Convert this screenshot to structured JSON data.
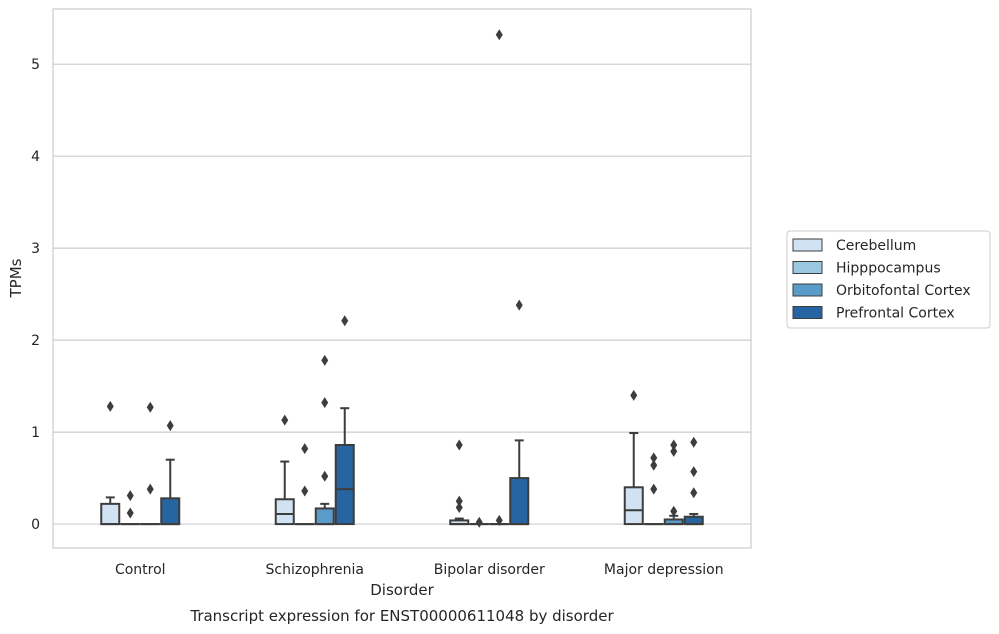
{
  "chart_data": {
    "type": "box",
    "title": "",
    "caption": "Transcript expression for ENST00000611048 by disorder",
    "xlabel": "Disorder",
    "ylabel": "TPMs",
    "ylim": [
      -0.26,
      5.6
    ],
    "yticks": [
      0,
      1,
      2,
      3,
      4,
      5
    ],
    "grid": "horizontal",
    "legend_position": "right",
    "categories": [
      "Control",
      "Schizophrenia",
      "Bipolar disorder",
      "Major depression"
    ],
    "series": [
      {
        "name": "Cerebellum",
        "color": "#d1e2f2",
        "boxes": [
          {
            "q1": 0,
            "median": 0,
            "q3": 0.22,
            "whislo": 0,
            "whishi": 0.29,
            "fliers": [
              1.28
            ]
          },
          {
            "q1": 0,
            "median": 0.11,
            "q3": 0.27,
            "whislo": 0,
            "whishi": 0.68,
            "fliers": [
              1.13
            ]
          },
          {
            "q1": 0,
            "median": 0,
            "q3": 0.04,
            "whislo": 0,
            "whishi": 0.06,
            "fliers": [
              0.18,
              0.25,
              0.86
            ]
          },
          {
            "q1": 0,
            "median": 0.15,
            "q3": 0.4,
            "whislo": 0,
            "whishi": 0.99,
            "fliers": [
              1.4
            ]
          }
        ]
      },
      {
        "name": "Hipppocampus",
        "color": "#9ac8e0",
        "boxes": [
          {
            "q1": 0,
            "median": 0,
            "q3": 0,
            "whislo": 0,
            "whishi": 0,
            "fliers": [
              0.12,
              0.31
            ]
          },
          {
            "q1": 0,
            "median": 0,
            "q3": 0,
            "whislo": 0,
            "whishi": 0,
            "fliers": [
              0.36,
              0.82
            ]
          },
          {
            "q1": 0,
            "median": 0,
            "q3": 0,
            "whislo": 0,
            "whishi": 0,
            "fliers": [
              0.02
            ]
          },
          {
            "q1": 0,
            "median": 0,
            "q3": 0,
            "whislo": 0,
            "whishi": 0,
            "fliers": [
              0.38,
              0.64,
              0.72
            ]
          }
        ]
      },
      {
        "name": "Orbitofontal Cortex",
        "color": "#5b9bc9",
        "boxes": [
          {
            "q1": 0,
            "median": 0,
            "q3": 0,
            "whislo": 0,
            "whishi": 0,
            "fliers": [
              0.38,
              1.27
            ]
          },
          {
            "q1": 0,
            "median": 0,
            "q3": 0.17,
            "whislo": 0,
            "whishi": 0.22,
            "fliers": [
              0.52,
              1.32,
              1.78
            ]
          },
          {
            "q1": 0,
            "median": 0,
            "q3": 0,
            "whislo": 0,
            "whishi": 0,
            "fliers": [
              0.04,
              5.32
            ]
          },
          {
            "q1": 0,
            "median": 0,
            "q3": 0.05,
            "whislo": 0,
            "whishi": 0.09,
            "fliers": [
              0.14,
              0.79,
              0.86
            ]
          }
        ]
      },
      {
        "name": "Prefrontal Cortex",
        "color": "#2764a2",
        "boxes": [
          {
            "q1": 0,
            "median": 0,
            "q3": 0.28,
            "whislo": 0,
            "whishi": 0.7,
            "fliers": [
              1.07
            ]
          },
          {
            "q1": 0,
            "median": 0.38,
            "q3": 0.86,
            "whislo": 0,
            "whishi": 1.26,
            "fliers": [
              2.21
            ]
          },
          {
            "q1": 0,
            "median": 0,
            "q3": 0.5,
            "whislo": 0,
            "whishi": 0.91,
            "fliers": [
              2.38
            ]
          },
          {
            "q1": 0,
            "median": 0,
            "q3": 0.08,
            "whislo": 0,
            "whishi": 0.11,
            "fliers": [
              0.34,
              0.57,
              0.89
            ]
          }
        ]
      }
    ]
  }
}
